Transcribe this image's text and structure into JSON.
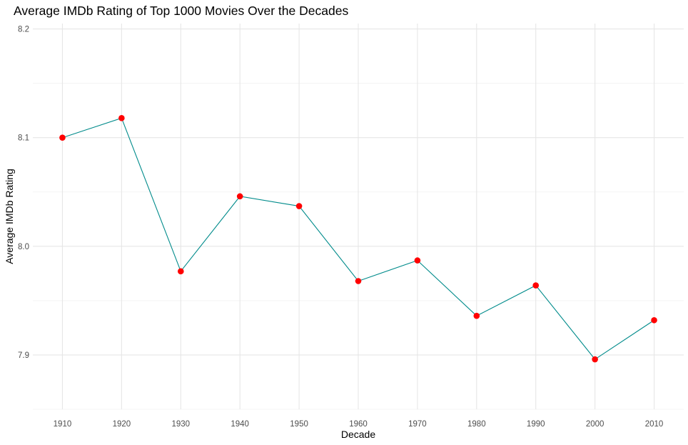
{
  "chart_data": {
    "type": "line",
    "title": "Average IMDb Rating of Top 1000 Movies Over the Decades",
    "xlabel": "Decade",
    "ylabel": "Average IMDb Rating",
    "categories": [
      "1910",
      "1920",
      "1930",
      "1940",
      "1950",
      "1960",
      "1970",
      "1980",
      "1990",
      "2000",
      "2010"
    ],
    "series": [
      {
        "values": [
          8.1,
          8.118,
          7.977,
          8.046,
          8.037,
          7.968,
          7.987,
          7.936,
          7.964,
          7.896,
          7.932
        ]
      }
    ],
    "ylim": [
      7.85,
      8.205
    ],
    "yticks": [
      "7.9",
      "8.0",
      "8.1",
      "8.2"
    ],
    "grid": true,
    "line_color": "#008B8B",
    "point_color": "#FF0000"
  }
}
